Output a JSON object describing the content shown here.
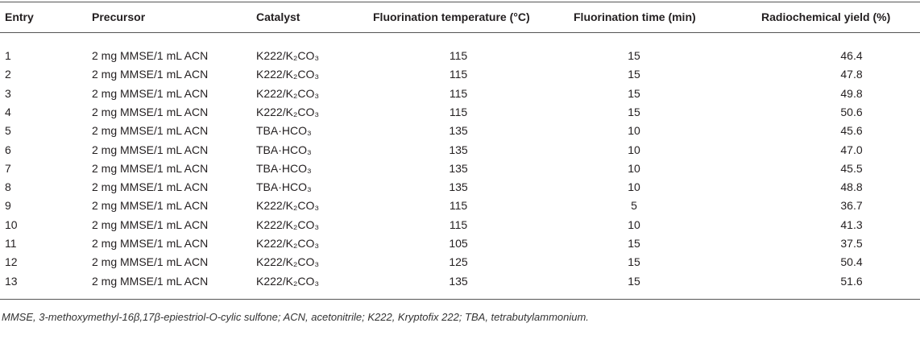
{
  "table": {
    "headers": [
      "Entry",
      "Precursor",
      "Catalyst",
      "Fluorination temperature (°C)",
      "Fluorination time (min)",
      "Radiochemical yield (%)"
    ],
    "rows": [
      [
        "1",
        "2 mg MMSE/1 mL ACN",
        "K222/K₂CO₃",
        "115",
        "15",
        "46.4"
      ],
      [
        "2",
        "2 mg MMSE/1 mL ACN",
        "K222/K₂CO₃",
        "115",
        "15",
        "47.8"
      ],
      [
        "3",
        "2 mg MMSE/1 mL ACN",
        "K222/K₂CO₃",
        "115",
        "15",
        "49.8"
      ],
      [
        "4",
        "2 mg MMSE/1 mL ACN",
        "K222/K₂CO₃",
        "115",
        "15",
        "50.6"
      ],
      [
        "5",
        "2 mg MMSE/1 mL ACN",
        "TBA·HCO₃",
        "135",
        "10",
        "45.6"
      ],
      [
        "6",
        "2 mg MMSE/1 mL ACN",
        "TBA·HCO₃",
        "135",
        "10",
        "47.0"
      ],
      [
        "7",
        "2 mg MMSE/1 mL ACN",
        "TBA·HCO₃",
        "135",
        "10",
        "45.5"
      ],
      [
        "8",
        "2 mg MMSE/1 mL ACN",
        "TBA·HCO₃",
        "135",
        "10",
        "48.8"
      ],
      [
        "9",
        "2 mg MMSE/1 mL ACN",
        "K222/K₂CO₃",
        "115",
        "5",
        "36.7"
      ],
      [
        "10",
        "2 mg MMSE/1 mL ACN",
        "K222/K₂CO₃",
        "115",
        "10",
        "41.3"
      ],
      [
        "11",
        "2 mg MMSE/1 mL ACN",
        "K222/K₂CO₃",
        "105",
        "15",
        "37.5"
      ],
      [
        "12",
        "2 mg MMSE/1 mL ACN",
        "K222/K₂CO₃",
        "125",
        "15",
        "50.4"
      ],
      [
        "13",
        "2 mg MMSE/1 mL ACN",
        "K222/K₂CO₃",
        "135",
        "15",
        "51.6"
      ]
    ],
    "footnote": "MMSE, 3-methoxymethyl-16β,17β-epiestriol-O-cylic sulfone; ACN, acetonitrile; K222, Kryptofix 222; TBA, tetrabutylammonium."
  }
}
